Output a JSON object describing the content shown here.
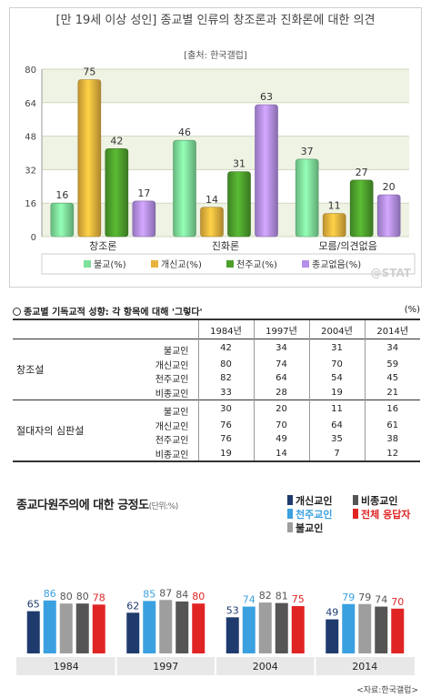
{
  "chart_data": [
    {
      "type": "bar",
      "title": "[만 19세 이상 성인] 종교별 인류의 창조론과 진화론에 대한 의견",
      "subtitle": "[출처: 한국갤럽]",
      "categories": [
        "창조론",
        "진화론",
        "모름/의견없음"
      ],
      "series": [
        {
          "name": "불교(%)",
          "values": [
            16,
            46,
            37
          ]
        },
        {
          "name": "개신교(%)",
          "values": [
            75,
            14,
            11
          ]
        },
        {
          "name": "천주교(%)",
          "values": [
            42,
            31,
            27
          ]
        },
        {
          "name": "종교없음(%)",
          "values": [
            17,
            63,
            20
          ]
        }
      ],
      "yticks": [
        0,
        16,
        32,
        48,
        64,
        80
      ],
      "ylim": [
        0,
        80
      ],
      "legend": "bottom",
      "colors": [
        "#7ee09a",
        "#e8b23c",
        "#4d9f2c",
        "#b48ee8"
      ],
      "watermark": "@STAT"
    },
    {
      "type": "table",
      "title": "종교별 기독교적 성향: 각 항목에 대해 '그렇다'",
      "unit": "(%)",
      "columns": [
        "1984년",
        "1997년",
        "2004년",
        "2014년"
      ],
      "groups": [
        {
          "label": "창조설",
          "rows": [
            {
              "name": "불교인",
              "values": [
                42,
                34,
                31,
                34
              ]
            },
            {
              "name": "개신교인",
              "values": [
                80,
                74,
                70,
                59
              ]
            },
            {
              "name": "천주교인",
              "values": [
                82,
                64,
                54,
                45
              ]
            },
            {
              "name": "비종교인",
              "values": [
                33,
                28,
                19,
                21
              ]
            }
          ]
        },
        {
          "label": "절대자의 심판설",
          "rows": [
            {
              "name": "불교인",
              "values": [
                30,
                20,
                11,
                16
              ]
            },
            {
              "name": "개신교인",
              "values": [
                76,
                70,
                64,
                61
              ]
            },
            {
              "name": "천주교인",
              "values": [
                76,
                49,
                35,
                38
              ]
            },
            {
              "name": "비종교인",
              "values": [
                19,
                14,
                7,
                12
              ]
            }
          ]
        }
      ]
    },
    {
      "type": "bar",
      "title": "종교다원주의에 대한 긍정도",
      "unit": "(단위:%)",
      "categories": [
        "1984",
        "1997",
        "2004",
        "2014"
      ],
      "series": [
        {
          "name": "개신교인",
          "values": [
            65,
            62,
            53,
            49
          ]
        },
        {
          "name": "천주교인",
          "values": [
            86,
            85,
            74,
            79
          ]
        },
        {
          "name": "불교인",
          "values": [
            80,
            87,
            82,
            79
          ]
        },
        {
          "name": "비종교인",
          "values": [
            80,
            84,
            81,
            74
          ]
        },
        {
          "name": "전체 응답자",
          "values": [
            78,
            80,
            75,
            70
          ]
        }
      ],
      "colors": [
        "#1f3b6e",
        "#3aa0e0",
        "#9e9e9e",
        "#555555",
        "#e02424"
      ],
      "legend": "top-right",
      "source": "<자료:한국갤럽>"
    }
  ]
}
